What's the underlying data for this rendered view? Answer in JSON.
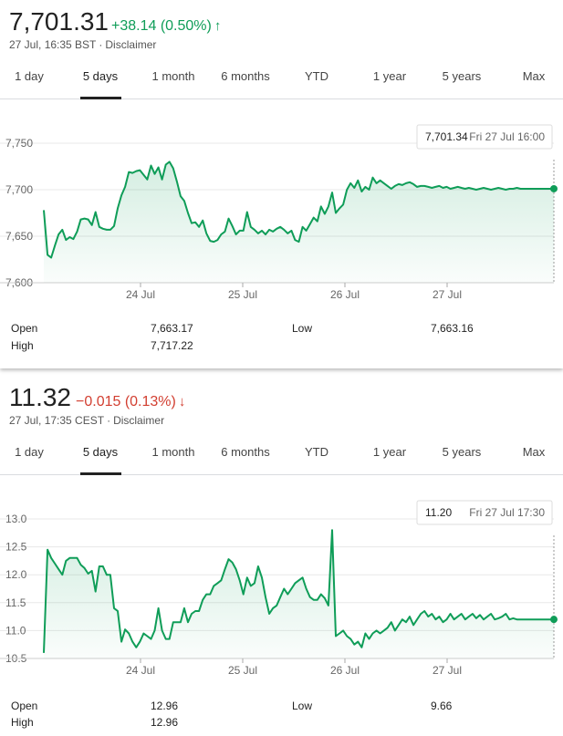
{
  "charts": [
    {
      "price": "7,701.31",
      "change": "+38.14 (0.50%)",
      "direction": "up",
      "timestamp": "27 Jul, 16:35 BST",
      "disclaimer": "Disclaimer",
      "tabs": [
        "1 day",
        "5 days",
        "1 month",
        "6 months",
        "YTD",
        "1 year",
        "5 years",
        "Max"
      ],
      "active_tab": "5 days",
      "tooltip": {
        "value": "7,701.34",
        "label": "Fri 27 Jul 16:00"
      },
      "stats": {
        "open_label": "Open",
        "open": "7,663.17",
        "high_label": "High",
        "high": "7,717.22",
        "low_label": "Low",
        "low": "7,663.16"
      },
      "line_color": "#0f9d58"
    },
    {
      "price": "11.32",
      "change": "−0.015 (0.13%)",
      "direction": "down",
      "timestamp": "27 Jul, 17:35 CEST",
      "disclaimer": "Disclaimer",
      "tabs": [
        "1 day",
        "5 days",
        "1 month",
        "6 months",
        "YTD",
        "1 year",
        "5 years",
        "Max"
      ],
      "active_tab": "5 days",
      "tooltip": {
        "value": "11.20",
        "label": "Fri 27 Jul 17:30"
      },
      "stats": {
        "open_label": "Open",
        "open": "12.96",
        "high_label": "High",
        "high": "12.96",
        "low_label": "Low",
        "low": "9.66"
      },
      "line_color": "#0f9d58"
    }
  ],
  "chart_data": [
    {
      "type": "line",
      "x_tick_labels": [
        "24 Jul",
        "25 Jul",
        "26 Jul",
        "27 Jul"
      ],
      "y_tick_labels": [
        "7,750",
        "7,700",
        "7,650",
        "7,600"
      ],
      "ylim": [
        7600,
        7750
      ],
      "grid": true,
      "x": [
        0,
        1,
        2,
        3,
        4,
        5,
        6,
        7,
        8,
        9,
        10,
        11,
        12,
        13,
        14,
        15,
        16,
        17,
        18,
        19,
        20,
        21,
        22,
        23,
        24,
        25,
        26,
        27,
        28,
        29,
        30,
        31,
        32,
        33,
        34,
        35,
        36,
        37,
        38,
        39,
        40,
        41,
        42,
        43,
        44,
        45,
        46,
        47,
        48,
        49,
        50,
        51,
        52,
        53,
        54,
        55,
        56,
        57,
        58,
        59,
        60,
        61,
        62,
        63,
        64,
        65,
        66,
        67,
        68,
        69,
        70,
        71,
        72,
        73,
        74,
        75,
        76,
        77,
        78,
        79,
        80,
        81,
        82,
        83,
        84,
        85,
        86,
        87,
        88,
        89,
        90,
        91,
        92,
        93,
        94,
        95,
        96,
        97,
        98,
        99,
        100,
        101,
        102,
        103,
        104,
        105,
        106,
        107,
        108,
        109,
        110,
        111,
        112,
        113,
        114,
        115,
        116,
        117,
        118,
        119,
        120,
        121,
        122,
        123,
        124,
        125,
        126,
        127,
        128,
        129,
        130,
        131,
        132,
        133,
        134,
        135,
        136,
        137,
        138
      ],
      "values": [
        7678,
        7630,
        7627,
        7640,
        7652,
        7657,
        7646,
        7649,
        7647,
        7655,
        7668,
        7669,
        7668,
        7662,
        7676,
        7660,
        7658,
        7657,
        7657,
        7661,
        7680,
        7694,
        7703,
        7719,
        7718,
        7720,
        7721,
        7716,
        7711,
        7726,
        7717,
        7724,
        7711,
        7727,
        7730,
        7723,
        7709,
        7693,
        7688,
        7675,
        7664,
        7665,
        7660,
        7667,
        7653,
        7645,
        7644,
        7646,
        7652,
        7655,
        7669,
        7661,
        7652,
        7656,
        7656,
        7676,
        7660,
        7657,
        7653,
        7656,
        7652,
        7657,
        7655,
        7658,
        7660,
        7657,
        7653,
        7656,
        7646,
        7644,
        7660,
        7656,
        7663,
        7670,
        7666,
        7682,
        7674,
        7682,
        7697,
        7675,
        7680,
        7684,
        7700,
        7707,
        7702,
        7710,
        7698,
        7703,
        7700,
        7713,
        7707,
        7710,
        7707,
        7704,
        7701,
        7704,
        7706,
        7705,
        7707,
        7708,
        7706,
        7703,
        7704,
        7704,
        7703,
        7702,
        7703,
        7704,
        7702,
        7703,
        7701,
        7702,
        7703,
        7702,
        7701,
        7702,
        7701,
        7700,
        7701,
        7702,
        7701,
        7700,
        7701,
        7702,
        7701,
        7700,
        7701,
        7701,
        7702,
        7701,
        7701,
        7701,
        7701,
        7701,
        7701,
        7701,
        7701,
        7701,
        7701
      ]
    },
    {
      "type": "line",
      "x_tick_labels": [
        "24 Jul",
        "25 Jul",
        "26 Jul",
        "27 Jul"
      ],
      "y_tick_labels": [
        "13.0",
        "12.5",
        "12.0",
        "11.5",
        "11.0",
        "10.5"
      ],
      "ylim": [
        10.5,
        13.0
      ],
      "grid": true,
      "x": [
        0,
        1,
        2,
        3,
        4,
        5,
        6,
        7,
        8,
        9,
        10,
        11,
        12,
        13,
        14,
        15,
        16,
        17,
        18,
        19,
        20,
        21,
        22,
        23,
        24,
        25,
        26,
        27,
        28,
        29,
        30,
        31,
        32,
        33,
        34,
        35,
        36,
        37,
        38,
        39,
        40,
        41,
        42,
        43,
        44,
        45,
        46,
        47,
        48,
        49,
        50,
        51,
        52,
        53,
        54,
        55,
        56,
        57,
        58,
        59,
        60,
        61,
        62,
        63,
        64,
        65,
        66,
        67,
        68,
        69,
        70,
        71,
        72,
        73,
        74,
        75,
        76,
        77,
        78,
        79,
        80,
        81,
        82,
        83,
        84,
        85,
        86,
        87,
        88,
        89,
        90,
        91,
        92,
        93,
        94,
        95,
        96,
        97,
        98,
        99,
        100,
        101,
        102,
        103,
        104,
        105,
        106,
        107,
        108,
        109,
        110,
        111,
        112,
        113,
        114,
        115,
        116,
        117,
        118,
        119,
        120,
        121,
        122,
        123,
        124,
        125,
        126,
        127,
        128,
        129,
        130,
        131,
        132,
        133,
        134,
        135,
        136,
        137,
        138
      ],
      "values": [
        10.6,
        12.45,
        12.3,
        12.2,
        12.1,
        12.0,
        12.25,
        12.3,
        12.3,
        12.3,
        12.18,
        12.12,
        12.02,
        12.07,
        11.7,
        12.15,
        12.15,
        12.0,
        12.0,
        11.4,
        11.35,
        10.8,
        11.02,
        10.95,
        10.8,
        10.7,
        10.8,
        10.95,
        10.9,
        10.85,
        11.0,
        11.4,
        11.0,
        10.85,
        10.85,
        11.15,
        11.15,
        11.15,
        11.4,
        11.15,
        11.3,
        11.35,
        11.35,
        11.55,
        11.65,
        11.65,
        11.8,
        11.85,
        11.9,
        12.1,
        12.28,
        12.22,
        12.1,
        11.9,
        11.65,
        11.95,
        11.8,
        11.85,
        12.15,
        11.95,
        11.6,
        11.3,
        11.4,
        11.45,
        11.6,
        11.75,
        11.65,
        11.75,
        11.85,
        11.9,
        11.95,
        11.75,
        11.6,
        11.55,
        11.55,
        11.65,
        11.58,
        11.45,
        12.8,
        10.9,
        10.95,
        11.0,
        10.9,
        10.85,
        10.75,
        10.8,
        10.7,
        10.95,
        10.85,
        10.95,
        11.0,
        10.95,
        11.0,
        11.05,
        11.15,
        11.0,
        11.1,
        11.2,
        11.15,
        11.25,
        11.1,
        11.2,
        11.3,
        11.35,
        11.25,
        11.3,
        11.2,
        11.25,
        11.15,
        11.2,
        11.3,
        11.2,
        11.25,
        11.3,
        11.2,
        11.25,
        11.3,
        11.22,
        11.28,
        11.2,
        11.25,
        11.3,
        11.2,
        11.22,
        11.25,
        11.3,
        11.2,
        11.22,
        11.2,
        11.2,
        11.2,
        11.2,
        11.2,
        11.2,
        11.2,
        11.2,
        11.2,
        11.2,
        11.2
      ]
    }
  ]
}
